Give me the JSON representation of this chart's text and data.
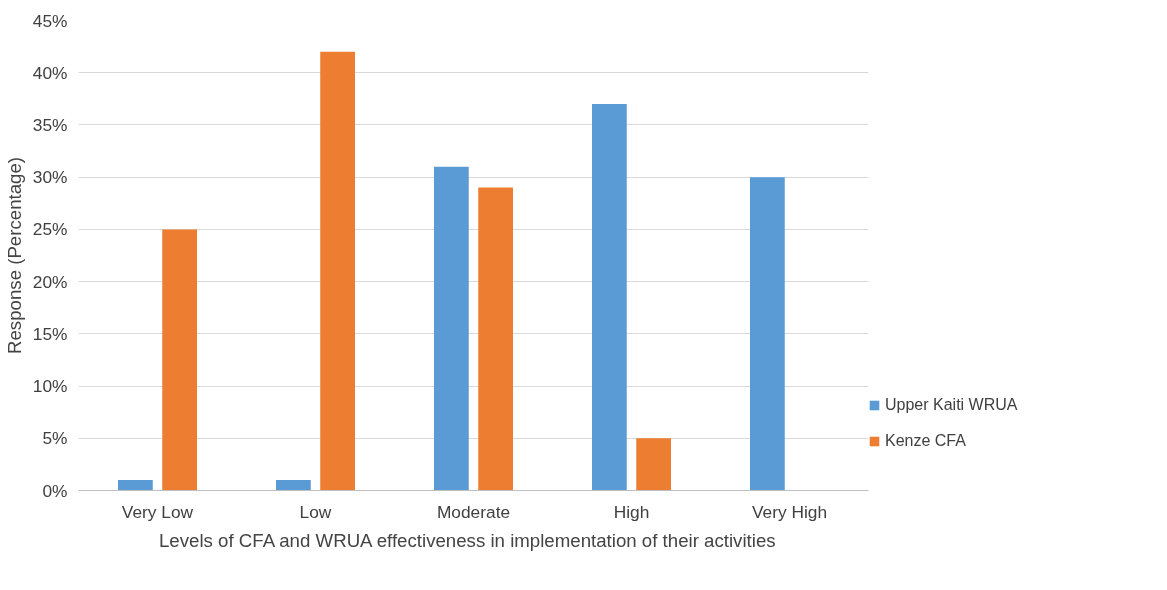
{
  "chart_data": {
    "type": "bar",
    "xlabel": "Levels of  CFA and WRUA effectiveness  in implementation of their activities",
    "ylabel": "Response (Percentage)",
    "categories": [
      "Very Low",
      "Low",
      "Moderate",
      "High",
      "Very High"
    ],
    "series": [
      {
        "name": "Upper Kaiti WRUA",
        "color": "#5b9bd5",
        "values": [
          1,
          1,
          31,
          37,
          30
        ]
      },
      {
        "name": "Kenze CFA",
        "color": "#ed7d31",
        "values": [
          25,
          42,
          29,
          5,
          0
        ]
      }
    ],
    "ylim": [
      0,
      45
    ],
    "yticks": [
      {
        "value": 0,
        "label": "0%"
      },
      {
        "value": 5,
        "label": "5%"
      },
      {
        "value": 10,
        "label": "10%"
      },
      {
        "value": 15,
        "label": "15%"
      },
      {
        "value": 20,
        "label": "20%"
      },
      {
        "value": 25,
        "label": "25%"
      },
      {
        "value": 30,
        "label": "30%"
      },
      {
        "value": 35,
        "label": "35%"
      },
      {
        "value": 40,
        "label": "40%"
      },
      {
        "value": 45,
        "label": "45%"
      }
    ],
    "grid": "y",
    "legend": "right"
  }
}
